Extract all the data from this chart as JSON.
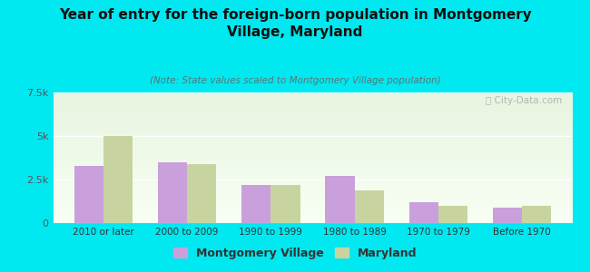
{
  "title": "Year of entry for the foreign-born population in Montgomery\nVillage, Maryland",
  "subtitle": "(Note: State values scaled to Montgomery Village population)",
  "categories": [
    "2010 or later",
    "2000 to 2009",
    "1990 to 1999",
    "1980 to 1989",
    "1970 to 1979",
    "Before 1970"
  ],
  "montgomery_values": [
    3300,
    3500,
    2200,
    2700,
    1200,
    900
  ],
  "maryland_values": [
    5000,
    3400,
    2200,
    1900,
    1000,
    1000
  ],
  "mv_color": "#c9a0dc",
  "md_color": "#c8d4a0",
  "background_color": "#00e8f0",
  "ylim": [
    0,
    7500
  ],
  "yticks": [
    0,
    2500,
    5000,
    7500
  ],
  "ytick_labels": [
    "0",
    "2.5k",
    "5k",
    "7.5k"
  ],
  "bar_width": 0.35,
  "legend_mv": "Montgomery Village",
  "legend_md": "Maryland",
  "watermark": "ⓘ City-Data.com"
}
